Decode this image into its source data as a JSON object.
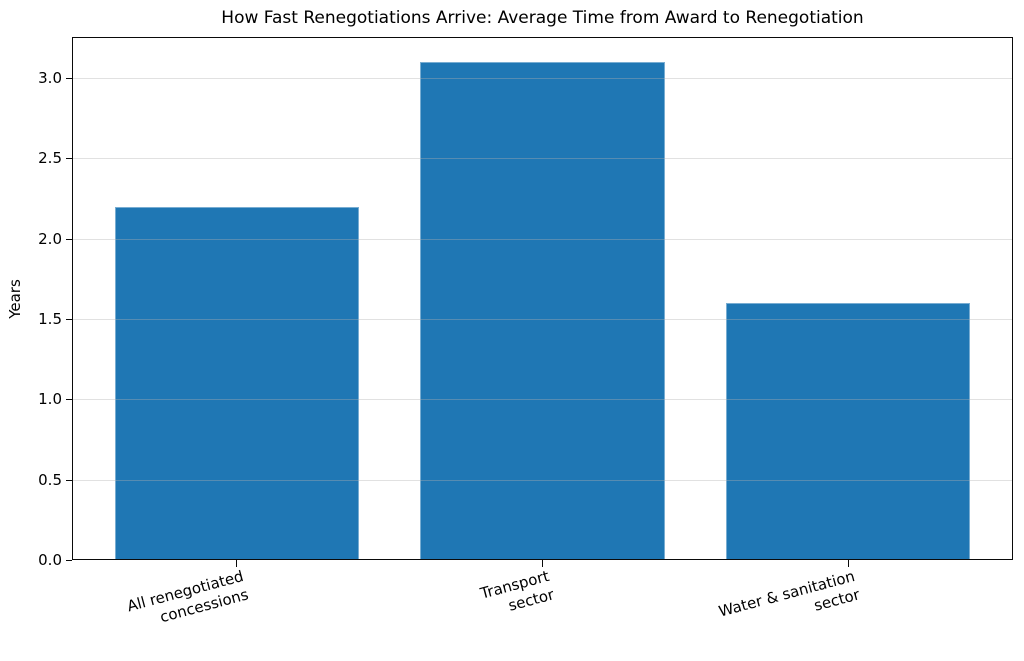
{
  "chart_data": {
    "type": "bar",
    "title": "How Fast Renegotiations Arrive: Average Time from Award to Renegotiation",
    "categories": [
      "All renegotiated\nconcessions",
      "Transport\nsector",
      "Water & sanitation\nsector"
    ],
    "values": [
      2.2,
      3.1,
      1.6
    ],
    "xlabel": "",
    "ylabel": "Years",
    "ylim": [
      0,
      3.255
    ],
    "yticks": [
      0.0,
      0.5,
      1.0,
      1.5,
      2.0,
      2.5,
      3.0
    ],
    "ytick_labels": [
      "0.0",
      "0.5",
      "1.0",
      "1.5",
      "2.0",
      "2.5",
      "3.0"
    ],
    "bar_width_fraction": 0.8,
    "x_tick_rotation_deg": 15,
    "grid": true,
    "legend_position": "none",
    "colors": {
      "bar": "#1f77b4",
      "grid_over_white": "rgba(176,176,176,0.38)",
      "axis": "#0a0a0a",
      "text": "#000000",
      "background": "#ffffff"
    }
  }
}
